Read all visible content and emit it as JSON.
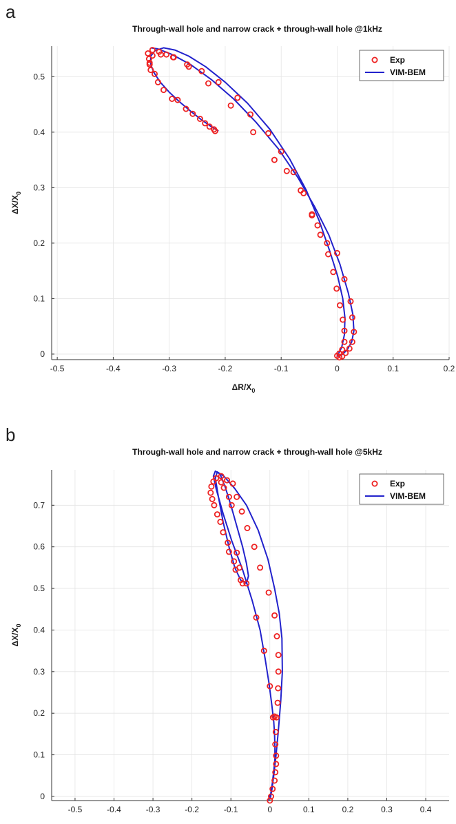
{
  "panels": [
    {
      "letter": "a",
      "chart_data": {
        "type": "scatter",
        "title": "Through-wall hole and narrow crack + through-wall hole @1kHz",
        "xlabel": "ΔR/X",
        "xlabel_sub": "0",
        "ylabel": "ΔX/X",
        "ylabel_sub": "0",
        "xlim": [
          -0.51,
          0.2
        ],
        "ylim": [
          -0.01,
          0.555
        ],
        "xticks": [
          -0.5,
          -0.4,
          -0.3,
          -0.2,
          -0.1,
          0,
          0.1,
          0.2
        ],
        "xtick_labels": [
          "-0.5",
          "-0.4",
          "-0.3",
          "-0.2",
          "-0.1",
          "0",
          "0.1",
          "0.2"
        ],
        "yticks": [
          0,
          0.1,
          0.2,
          0.3,
          0.4,
          0.5
        ],
        "ytick_labels": [
          "0",
          "0.1",
          "0.2",
          "0.3",
          "0.4",
          "0.5"
        ],
        "grid": true,
        "legend_position": "top-right",
        "series": [
          {
            "name": "Exp",
            "kind": "markers",
            "color": "#ee2222",
            "points": [
              [
                -0.218,
                0.402
              ],
              [
                -0.22,
                0.405
              ],
              [
                -0.228,
                0.41
              ],
              [
                -0.236,
                0.416
              ],
              [
                -0.245,
                0.424
              ],
              [
                -0.258,
                0.433
              ],
              [
                -0.27,
                0.442
              ],
              [
                -0.285,
                0.458
              ],
              [
                -0.295,
                0.46
              ],
              [
                -0.31,
                0.476
              ],
              [
                -0.32,
                0.49
              ],
              [
                -0.326,
                0.505
              ],
              [
                -0.333,
                0.512
              ],
              [
                -0.335,
                0.522
              ],
              [
                -0.336,
                0.532
              ],
              [
                -0.338,
                0.542
              ],
              [
                -0.33,
                0.548
              ],
              [
                -0.318,
                0.545
              ],
              [
                -0.305,
                0.54
              ],
              [
                -0.292,
                0.535
              ],
              [
                -0.268,
                0.522
              ],
              [
                -0.242,
                0.51
              ],
              [
                -0.212,
                0.49
              ],
              [
                -0.178,
                0.462
              ],
              [
                -0.155,
                0.432
              ],
              [
                -0.123,
                0.398
              ],
              [
                -0.1,
                0.365
              ],
              [
                -0.078,
                0.328
              ],
              [
                -0.06,
                0.29
              ],
              [
                -0.045,
                0.252
              ],
              [
                -0.035,
                0.232
              ],
              [
                -0.03,
                0.215
              ],
              [
                -0.016,
                0.18
              ],
              [
                -0.007,
                0.148
              ],
              [
                -0.001,
                0.118
              ],
              [
                0.005,
                0.088
              ],
              [
                0.01,
                0.062
              ],
              [
                0.013,
                0.042
              ],
              [
                0.013,
                0.022
              ],
              [
                0.009,
                0.008
              ],
              [
                0.004,
                0.001
              ],
              [
                0.0,
                -0.003
              ],
              [
                0.004,
                -0.006
              ],
              [
                0.009,
                -0.004
              ],
              [
                0.015,
                0.002
              ],
              [
                0.022,
                0.01
              ],
              [
                0.027,
                0.022
              ],
              [
                0.03,
                0.04
              ],
              [
                0.027,
                0.066
              ],
              [
                0.024,
                0.095
              ],
              [
                0.013,
                0.135
              ],
              [
                0.0,
                0.182
              ],
              [
                -0.018,
                0.2
              ],
              [
                -0.045,
                0.25
              ],
              [
                -0.065,
                0.295
              ],
              [
                -0.09,
                0.33
              ],
              [
                -0.112,
                0.35
              ],
              [
                -0.15,
                0.4
              ],
              [
                -0.19,
                0.448
              ],
              [
                -0.23,
                0.488
              ],
              [
                -0.265,
                0.518
              ],
              [
                -0.293,
                0.535
              ],
              [
                -0.315,
                0.54
              ],
              [
                -0.33,
                0.538
              ],
              [
                -0.335,
                0.525
              ]
            ]
          },
          {
            "name": "VIM-BEM",
            "kind": "line",
            "color": "#2222cc",
            "points": [
              [
                -0.212,
                0.402
              ],
              [
                -0.225,
                0.41
              ],
              [
                -0.242,
                0.422
              ],
              [
                -0.262,
                0.438
              ],
              [
                -0.282,
                0.455
              ],
              [
                -0.3,
                0.472
              ],
              [
                -0.316,
                0.49
              ],
              [
                -0.327,
                0.507
              ],
              [
                -0.333,
                0.522
              ],
              [
                -0.333,
                0.537
              ],
              [
                -0.325,
                0.547
              ],
              [
                -0.31,
                0.552
              ],
              [
                -0.29,
                0.548
              ],
              [
                -0.265,
                0.537
              ],
              [
                -0.235,
                0.518
              ],
              [
                -0.2,
                0.49
              ],
              [
                -0.16,
                0.452
              ],
              [
                -0.12,
                0.405
              ],
              [
                -0.085,
                0.352
              ],
              [
                -0.055,
                0.295
              ],
              [
                -0.032,
                0.24
              ],
              [
                -0.013,
                0.185
              ],
              [
                0.001,
                0.14
              ],
              [
                0.01,
                0.1
              ],
              [
                0.014,
                0.065
              ],
              [
                0.013,
                0.035
              ],
              [
                0.008,
                0.012
              ],
              [
                0.003,
                0.002
              ],
              [
                0.0,
                -0.003
              ],
              [
                0.004,
                -0.004
              ],
              [
                0.01,
                0.0
              ],
              [
                0.018,
                0.008
              ],
              [
                0.026,
                0.022
              ],
              [
                0.03,
                0.042
              ],
              [
                0.028,
                0.072
              ],
              [
                0.02,
                0.11
              ],
              [
                0.005,
                0.162
              ],
              [
                -0.015,
                0.215
              ],
              [
                -0.04,
                0.265
              ],
              [
                -0.07,
                0.318
              ],
              [
                -0.105,
                0.37
              ],
              [
                -0.145,
                0.418
              ],
              [
                -0.185,
                0.46
              ],
              [
                -0.225,
                0.495
              ],
              [
                -0.262,
                0.522
              ],
              [
                -0.295,
                0.54
              ],
              [
                -0.32,
                0.55
              ],
              [
                -0.333,
                0.552
              ]
            ]
          }
        ]
      }
    },
    {
      "letter": "b",
      "chart_data": {
        "type": "scatter",
        "title": "Through-wall hole and narrow crack + through-wall hole @5kHz",
        "xlabel": "ΔR/X",
        "xlabel_sub": "0",
        "ylabel": "ΔX/X",
        "ylabel_sub": "0",
        "xlim": [
          -0.56,
          0.46
        ],
        "ylim": [
          -0.01,
          0.785
        ],
        "xticks": [
          -0.5,
          -0.4,
          -0.3,
          -0.2,
          -0.1,
          0,
          0.1,
          0.2,
          0.3,
          0.4
        ],
        "xtick_labels": [
          "-0.5",
          "-0.4",
          "-0.3",
          "-0.2",
          "-0.1",
          "0",
          "0.1",
          "0.2",
          "0.3",
          "0.4"
        ],
        "yticks": [
          0,
          0.1,
          0.2,
          0.3,
          0.4,
          0.5,
          0.6,
          0.7
        ],
        "ytick_labels": [
          "0",
          "0.1",
          "0.2",
          "0.3",
          "0.4",
          "0.5",
          "0.6",
          "0.7"
        ],
        "grid": true,
        "legend_position": "top-right",
        "series": [
          {
            "name": "Exp",
            "kind": "markers",
            "color": "#ee2222",
            "points": [
              [
                0.0,
                -0.01
              ],
              [
                0.003,
                0.0
              ],
              [
                0.007,
                0.018
              ],
              [
                0.012,
                0.038
              ],
              [
                0.014,
                0.058
              ],
              [
                0.016,
                0.078
              ],
              [
                0.016,
                0.098
              ],
              [
                0.014,
                0.125
              ],
              [
                0.015,
                0.155
              ],
              [
                0.017,
                0.19
              ],
              [
                0.012,
                0.192
              ],
              [
                0.02,
                0.225
              ],
              [
                0.021,
                0.26
              ],
              [
                0.022,
                0.3
              ],
              [
                0.022,
                0.34
              ],
              [
                0.018,
                0.385
              ],
              [
                0.012,
                0.435
              ],
              [
                -0.003,
                0.49
              ],
              [
                -0.025,
                0.55
              ],
              [
                -0.04,
                0.6
              ],
              [
                -0.058,
                0.645
              ],
              [
                -0.072,
                0.685
              ],
              [
                -0.085,
                0.72
              ],
              [
                -0.095,
                0.752
              ],
              [
                -0.11,
                0.76
              ],
              [
                -0.125,
                0.77
              ],
              [
                -0.138,
                0.765
              ],
              [
                -0.145,
                0.757
              ],
              [
                -0.15,
                0.745
              ],
              [
                -0.152,
                0.73
              ],
              [
                -0.148,
                0.715
              ],
              [
                -0.143,
                0.7
              ],
              [
                -0.135,
                0.678
              ],
              [
                -0.127,
                0.66
              ],
              [
                -0.12,
                0.635
              ],
              [
                -0.108,
                0.61
              ],
              [
                -0.105,
                0.588
              ],
              [
                -0.092,
                0.565
              ],
              [
                -0.088,
                0.545
              ],
              [
                -0.075,
                0.52
              ],
              [
                -0.07,
                0.512
              ],
              [
                -0.06,
                0.512
              ],
              [
                -0.035,
                0.43
              ],
              [
                -0.015,
                0.35
              ],
              [
                0.0,
                0.265
              ],
              [
                0.008,
                0.19
              ],
              [
                -0.125,
                0.755
              ],
              [
                -0.118,
                0.742
              ],
              [
                -0.105,
                0.72
              ],
              [
                -0.098,
                0.7
              ],
              [
                -0.085,
                0.586
              ],
              [
                -0.078,
                0.55
              ]
            ]
          },
          {
            "name": "VIM-BEM",
            "kind": "line",
            "color": "#2222cc",
            "points": [
              [
                -0.005,
                -0.01
              ],
              [
                0.002,
                0.005
              ],
              [
                0.006,
                0.03
              ],
              [
                0.01,
                0.06
              ],
              [
                0.013,
                0.09
              ],
              [
                0.013,
                0.12
              ],
              [
                0.012,
                0.15
              ],
              [
                0.01,
                0.18
              ],
              [
                0.005,
                0.22
              ],
              [
                -0.002,
                0.27
              ],
              [
                -0.012,
                0.33
              ],
              [
                -0.025,
                0.4
              ],
              [
                -0.045,
                0.47
              ],
              [
                -0.07,
                0.545
              ],
              [
                -0.098,
                0.615
              ],
              [
                -0.12,
                0.68
              ],
              [
                -0.138,
                0.74
              ],
              [
                -0.145,
                0.77
              ],
              [
                -0.14,
                0.782
              ],
              [
                -0.128,
                0.775
              ],
              [
                -0.115,
                0.745
              ],
              [
                -0.1,
                0.7
              ],
              [
                -0.085,
                0.65
              ],
              [
                -0.07,
                0.6
              ],
              [
                -0.06,
                0.56
              ],
              [
                -0.055,
                0.53
              ],
              [
                -0.06,
                0.512
              ],
              [
                -0.075,
                0.52
              ],
              [
                -0.09,
                0.55
              ],
              [
                -0.105,
                0.6
              ],
              [
                -0.12,
                0.66
              ],
              [
                -0.132,
                0.72
              ],
              [
                -0.14,
                0.765
              ],
              [
                -0.135,
                0.78
              ],
              [
                -0.118,
                0.77
              ],
              [
                -0.09,
                0.74
              ],
              [
                -0.06,
                0.7
              ],
              [
                -0.03,
                0.64
              ],
              [
                -0.005,
                0.57
              ],
              [
                0.012,
                0.5
              ],
              [
                0.024,
                0.44
              ],
              [
                0.031,
                0.38
              ],
              [
                0.032,
                0.3
              ],
              [
                0.028,
                0.23
              ],
              [
                0.022,
                0.16
              ],
              [
                0.016,
                0.1
              ],
              [
                0.01,
                0.05
              ],
              [
                0.005,
                0.015
              ],
              [
                0.001,
                -0.005
              ]
            ]
          }
        ]
      }
    }
  ]
}
